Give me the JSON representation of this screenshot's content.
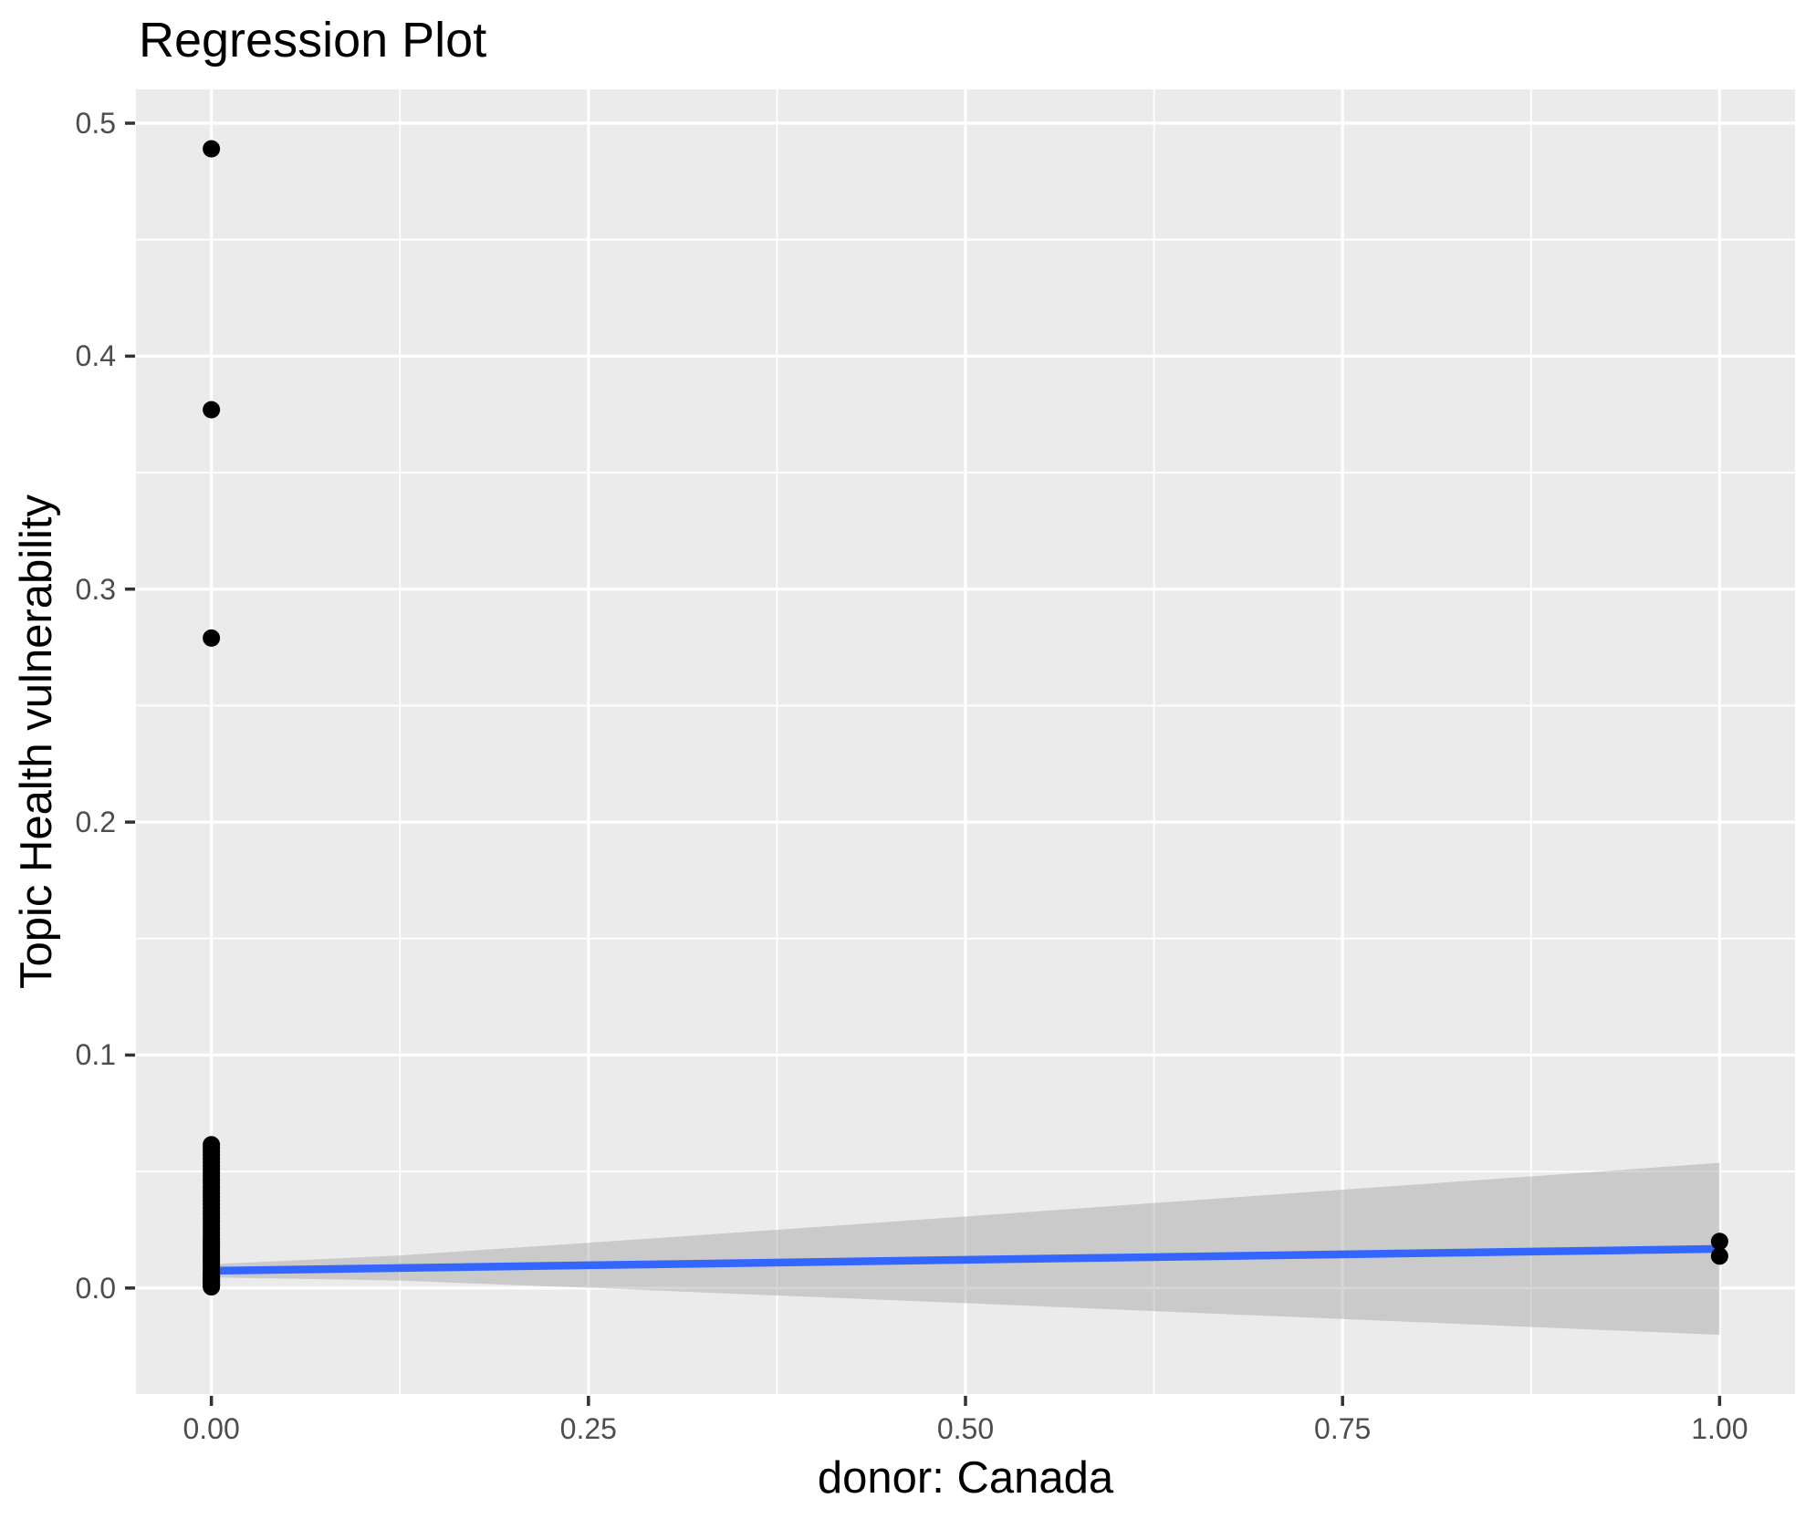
{
  "title": "Regression Plot",
  "chart_data": {
    "type": "scatter",
    "title": "Regression Plot",
    "xlabel": "donor: Canada",
    "ylabel": "Topic Health vulnerability",
    "xlim": [
      -0.05,
      1.05
    ],
    "ylim": [
      -0.0455,
      0.5145
    ],
    "grid": true,
    "legend": false,
    "x_ticks": {
      "values": [
        0,
        0.25,
        0.5,
        0.75,
        1.0
      ],
      "labels": [
        "0.00",
        "0.25",
        "0.50",
        "0.75",
        "1.00"
      ]
    },
    "y_ticks": {
      "values": [
        0.0,
        0.1,
        0.2,
        0.3,
        0.4,
        0.5
      ],
      "labels": [
        "0.0",
        "0.1",
        "0.2",
        "0.3",
        "0.4",
        "0.5"
      ]
    },
    "x_minor_breaks": [
      0.125,
      0.375,
      0.625,
      0.875
    ],
    "y_minor_breaks": [
      0.05,
      0.15,
      0.25,
      0.35,
      0.45
    ],
    "series": [
      {
        "name": "observations_at_x0_cluster",
        "kind": "points",
        "x": 0,
        "y": [
          0.0005,
          0.001,
          0.0015,
          0.002,
          0.0025,
          0.003,
          0.0035,
          0.004,
          0.0045,
          0.005,
          0.0055,
          0.006,
          0.0065,
          0.007,
          0.008,
          0.009,
          0.01,
          0.011,
          0.012,
          0.013,
          0.014,
          0.015,
          0.016,
          0.017,
          0.018,
          0.019,
          0.02,
          0.021,
          0.0225,
          0.024,
          0.0255,
          0.027,
          0.0285,
          0.03,
          0.0315,
          0.033,
          0.0345,
          0.036,
          0.0375,
          0.039,
          0.0405,
          0.042,
          0.0435,
          0.045,
          0.0465,
          0.048,
          0.0495,
          0.051,
          0.0525,
          0.054,
          0.0555,
          0.057,
          0.0585,
          0.06,
          0.0615
        ]
      },
      {
        "name": "outliers_at_x0",
        "kind": "points",
        "x": 0,
        "y": [
          0.279,
          0.377,
          0.489
        ]
      },
      {
        "name": "observations_at_x1",
        "kind": "points",
        "x": 1,
        "y": [
          0.0137,
          0.02
        ]
      },
      {
        "name": "regression_line",
        "kind": "line",
        "x": [
          0,
          1
        ],
        "y": [
          0.0074,
          0.0168
        ]
      },
      {
        "name": "confidence_band",
        "kind": "ribbon",
        "x": [
          0,
          0.125,
          0.25,
          0.375,
          0.5,
          0.625,
          0.75,
          0.875,
          1.0
        ],
        "upper": [
          0.0102,
          0.014,
          0.0194,
          0.025,
          0.0307,
          0.0365,
          0.0422,
          0.0479,
          0.0537
        ],
        "lower": [
          0.0046,
          0.0032,
          0.0001,
          -0.0032,
          -0.0065,
          -0.0099,
          -0.0133,
          -0.0167,
          -0.0201
        ]
      }
    ],
    "colors": {
      "point": "#000000",
      "regression_line": "#3366FF",
      "ribbon_fill": "#999999",
      "ribbon_opacity": 0.4,
      "panel_background": "#EBEBEB",
      "gridline": "#FFFFFF",
      "tick_label_text": "#4D4D4D",
      "tick_mark": "#333333",
      "title_text": "#000000"
    }
  }
}
